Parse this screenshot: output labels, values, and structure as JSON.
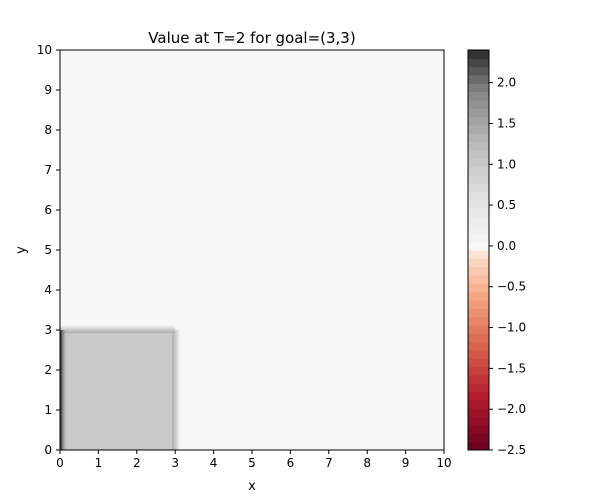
{
  "chart_data": {
    "type": "heatmap",
    "title": "Value at T=2 for goal=(3,3)",
    "xlabel": "x",
    "ylabel": "y",
    "xlim": [
      0,
      10
    ],
    "ylim": [
      0,
      10
    ],
    "x_ticks": [
      "0",
      "1",
      "2",
      "3",
      "4",
      "5",
      "6",
      "7",
      "8",
      "9",
      "10"
    ],
    "y_ticks": [
      "0",
      "1",
      "2",
      "3",
      "4",
      "5",
      "6",
      "7",
      "8",
      "9",
      "10"
    ],
    "colormap": "RdGy",
    "background_value": 0.0,
    "regions": [
      {
        "x": [
          0,
          3
        ],
        "y": [
          0,
          3
        ],
        "value": 1.0
      }
    ],
    "left_edge_value": 2.4,
    "colorbar": {
      "min": -2.5,
      "max": 2.4,
      "ticks": [
        2.0,
        1.5,
        1.0,
        0.5,
        0.0,
        -0.5,
        -1.0,
        -1.5,
        -2.0,
        -2.5
      ],
      "tick_labels": [
        "2.0",
        "1.5",
        "1.0",
        "0.5",
        "0.0",
        "−0.5",
        "−1.0",
        "−1.5",
        "−2.0",
        "−2.5"
      ]
    }
  }
}
